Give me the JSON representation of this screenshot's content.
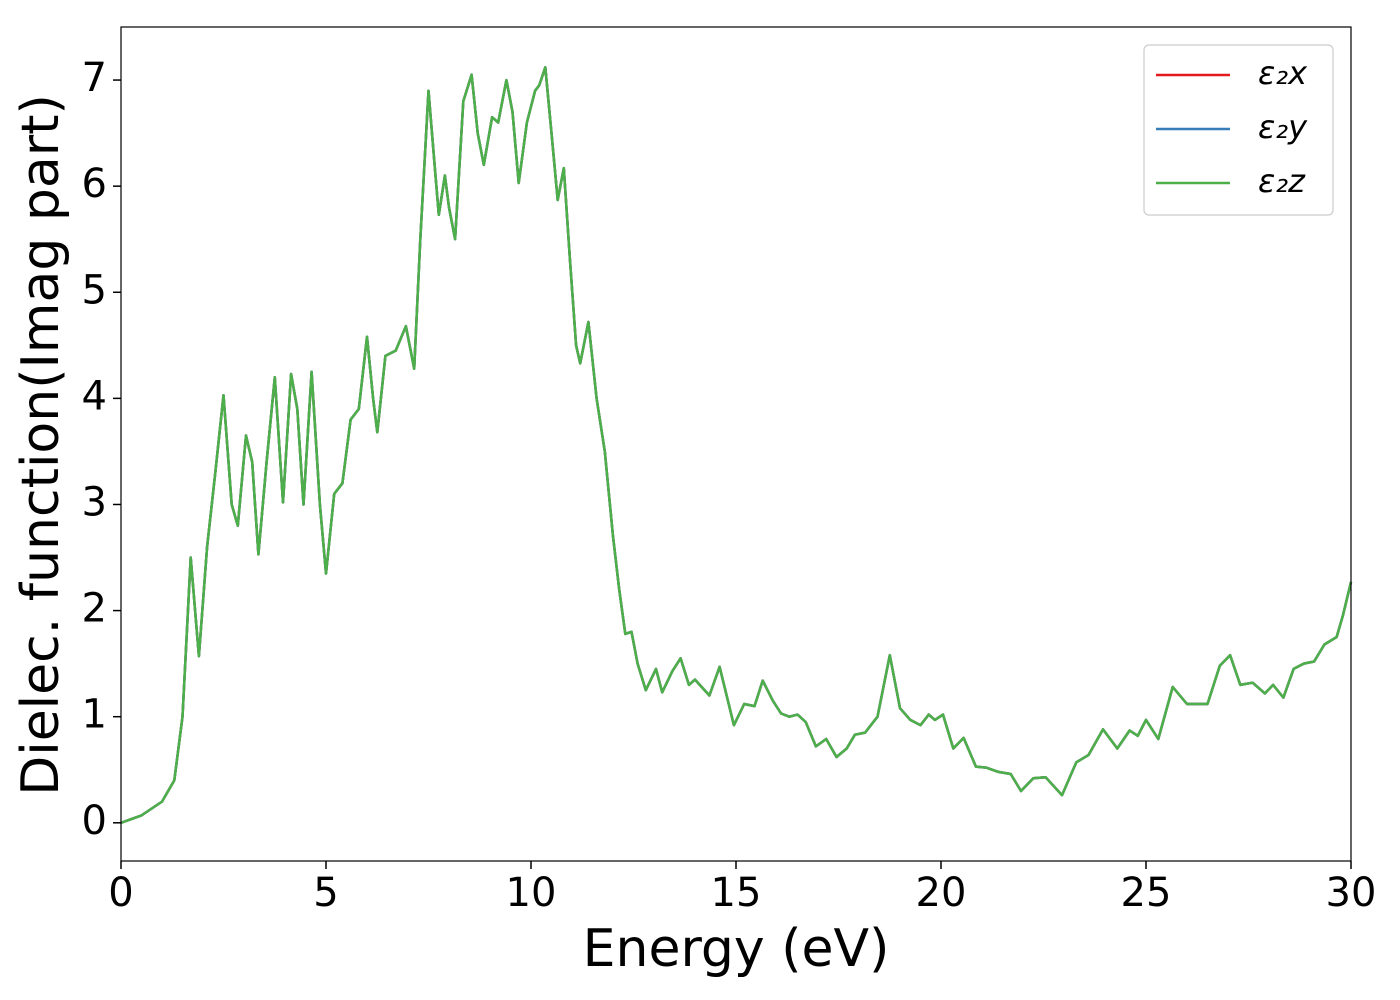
{
  "chart_data": {
    "type": "line",
    "xlabel": "Energy (eV)",
    "ylabel": "Dielec. function(Imag part)",
    "xlim": [
      0,
      30
    ],
    "ylim": [
      -0.36,
      7.5
    ],
    "xticks": [
      0,
      5,
      10,
      15,
      20,
      25,
      30
    ],
    "yticks": [
      0,
      1,
      2,
      3,
      4,
      5,
      6,
      7
    ],
    "legend": "upper right",
    "x": [
      0,
      0.5,
      1.0,
      1.3,
      1.5,
      1.7,
      1.9,
      2.1,
      2.3,
      2.5,
      2.7,
      2.85,
      3.05,
      3.2,
      3.35,
      3.55,
      3.75,
      3.95,
      4.15,
      4.3,
      4.45,
      4.65,
      4.85,
      5.0,
      5.2,
      5.4,
      5.6,
      5.8,
      6.0,
      6.15,
      6.25,
      6.45,
      6.7,
      6.95,
      7.15,
      7.3,
      7.5,
      7.65,
      7.75,
      7.9,
      8.0,
      8.15,
      8.35,
      8.55,
      8.7,
      8.85,
      9.05,
      9.2,
      9.4,
      9.55,
      9.7,
      9.9,
      10.1,
      10.2,
      10.35,
      10.5,
      10.65,
      10.8,
      10.95,
      11.1,
      11.2,
      11.4,
      11.6,
      11.8,
      12.0,
      12.15,
      12.3,
      12.45,
      12.6,
      12.8,
      13.05,
      13.2,
      13.45,
      13.65,
      13.85,
      14.0,
      14.35,
      14.6,
      14.95,
      15.2,
      15.45,
      15.65,
      15.9,
      16.1,
      16.3,
      16.5,
      16.7,
      16.95,
      17.2,
      17.45,
      17.7,
      17.9,
      18.15,
      18.45,
      18.75,
      19.0,
      19.25,
      19.5,
      19.7,
      19.85,
      20.05,
      20.3,
      20.55,
      20.85,
      21.1,
      21.4,
      21.7,
      21.95,
      22.25,
      22.55,
      22.95,
      23.3,
      23.6,
      23.95,
      24.3,
      24.6,
      24.8,
      25.0,
      25.3,
      25.65,
      26.0,
      26.5,
      26.8,
      27.05,
      27.3,
      27.6,
      27.9,
      28.1,
      28.35,
      28.6,
      28.85,
      29.1,
      29.35,
      29.65,
      29.8,
      30.0
    ],
    "series": [
      {
        "name": "ε₂x",
        "color": "#e41a1c",
        "values": [
          0,
          0.07,
          0.2,
          0.4,
          1.0,
          2.5,
          1.57,
          2.6,
          3.3,
          4.03,
          3.0,
          2.8,
          3.65,
          3.4,
          2.53,
          3.4,
          4.2,
          3.02,
          4.23,
          3.9,
          3.0,
          4.25,
          3.0,
          2.35,
          3.1,
          3.2,
          3.8,
          3.9,
          4.58,
          4.0,
          3.68,
          4.4,
          4.45,
          4.68,
          4.28,
          5.5,
          6.9,
          6.2,
          5.73,
          6.1,
          5.8,
          5.5,
          6.8,
          7.05,
          6.5,
          6.2,
          6.65,
          6.6,
          7.0,
          6.7,
          6.03,
          6.6,
          6.9,
          6.95,
          7.12,
          6.5,
          5.87,
          6.17,
          5.3,
          4.5,
          4.33,
          4.72,
          4.0,
          3.5,
          2.7,
          2.2,
          1.78,
          1.8,
          1.5,
          1.25,
          1.45,
          1.23,
          1.43,
          1.55,
          1.3,
          1.35,
          1.2,
          1.47,
          0.92,
          1.12,
          1.1,
          1.34,
          1.15,
          1.03,
          1.0,
          1.02,
          0.95,
          0.72,
          0.79,
          0.62,
          0.7,
          0.83,
          0.85,
          1.0,
          1.58,
          1.08,
          0.97,
          0.92,
          1.02,
          0.97,
          1.02,
          0.7,
          0.8,
          0.53,
          0.52,
          0.48,
          0.46,
          0.3,
          0.42,
          0.43,
          0.26,
          0.57,
          0.64,
          0.88,
          0.7,
          0.87,
          0.82,
          0.97,
          0.79,
          1.28,
          1.12,
          1.12,
          1.48,
          1.58,
          1.3,
          1.32,
          1.22,
          1.3,
          1.18,
          1.45,
          1.5,
          1.52,
          1.68,
          1.75,
          1.95,
          2.27
        ]
      },
      {
        "name": "ε₂y",
        "color": "#377eb8",
        "values": [
          0,
          0.07,
          0.2,
          0.4,
          1.0,
          2.5,
          1.57,
          2.6,
          3.3,
          4.03,
          3.0,
          2.8,
          3.65,
          3.4,
          2.53,
          3.4,
          4.2,
          3.02,
          4.23,
          3.9,
          3.0,
          4.25,
          3.0,
          2.35,
          3.1,
          3.2,
          3.8,
          3.9,
          4.58,
          4.0,
          3.68,
          4.4,
          4.45,
          4.68,
          4.28,
          5.5,
          6.9,
          6.2,
          5.73,
          6.1,
          5.8,
          5.5,
          6.8,
          7.05,
          6.5,
          6.2,
          6.65,
          6.6,
          7.0,
          6.7,
          6.03,
          6.6,
          6.9,
          6.95,
          7.12,
          6.5,
          5.87,
          6.17,
          5.3,
          4.5,
          4.33,
          4.72,
          4.0,
          3.5,
          2.7,
          2.2,
          1.78,
          1.8,
          1.5,
          1.25,
          1.45,
          1.23,
          1.43,
          1.55,
          1.3,
          1.35,
          1.2,
          1.47,
          0.92,
          1.12,
          1.1,
          1.34,
          1.15,
          1.03,
          1.0,
          1.02,
          0.95,
          0.72,
          0.79,
          0.62,
          0.7,
          0.83,
          0.85,
          1.0,
          1.58,
          1.08,
          0.97,
          0.92,
          1.02,
          0.97,
          1.02,
          0.7,
          0.8,
          0.53,
          0.52,
          0.48,
          0.46,
          0.3,
          0.42,
          0.43,
          0.26,
          0.57,
          0.64,
          0.88,
          0.7,
          0.87,
          0.82,
          0.97,
          0.79,
          1.28,
          1.12,
          1.12,
          1.48,
          1.58,
          1.3,
          1.32,
          1.22,
          1.3,
          1.18,
          1.45,
          1.5,
          1.52,
          1.68,
          1.75,
          1.95,
          2.27
        ]
      },
      {
        "name": "ε₂z",
        "color": "#4daf4a",
        "values": [
          0,
          0.07,
          0.2,
          0.4,
          1.0,
          2.5,
          1.57,
          2.6,
          3.3,
          4.03,
          3.0,
          2.8,
          3.65,
          3.4,
          2.53,
          3.4,
          4.2,
          3.02,
          4.23,
          3.9,
          3.0,
          4.25,
          3.0,
          2.35,
          3.1,
          3.2,
          3.8,
          3.9,
          4.58,
          4.0,
          3.68,
          4.4,
          4.45,
          4.68,
          4.28,
          5.5,
          6.9,
          6.2,
          5.73,
          6.1,
          5.8,
          5.5,
          6.8,
          7.05,
          6.5,
          6.2,
          6.65,
          6.6,
          7.0,
          6.7,
          6.03,
          6.6,
          6.9,
          6.95,
          7.12,
          6.5,
          5.87,
          6.17,
          5.3,
          4.5,
          4.33,
          4.72,
          4.0,
          3.5,
          2.7,
          2.2,
          1.78,
          1.8,
          1.5,
          1.25,
          1.45,
          1.23,
          1.43,
          1.55,
          1.3,
          1.35,
          1.2,
          1.47,
          0.92,
          1.12,
          1.1,
          1.34,
          1.15,
          1.03,
          1.0,
          1.02,
          0.95,
          0.72,
          0.79,
          0.62,
          0.7,
          0.83,
          0.85,
          1.0,
          1.58,
          1.08,
          0.97,
          0.92,
          1.02,
          0.97,
          1.02,
          0.7,
          0.8,
          0.53,
          0.52,
          0.48,
          0.46,
          0.3,
          0.42,
          0.43,
          0.26,
          0.57,
          0.64,
          0.88,
          0.7,
          0.87,
          0.82,
          0.97,
          0.79,
          1.28,
          1.12,
          1.12,
          1.48,
          1.58,
          1.3,
          1.32,
          1.22,
          1.3,
          1.18,
          1.45,
          1.5,
          1.52,
          1.68,
          1.75,
          1.95,
          2.27
        ]
      }
    ]
  }
}
